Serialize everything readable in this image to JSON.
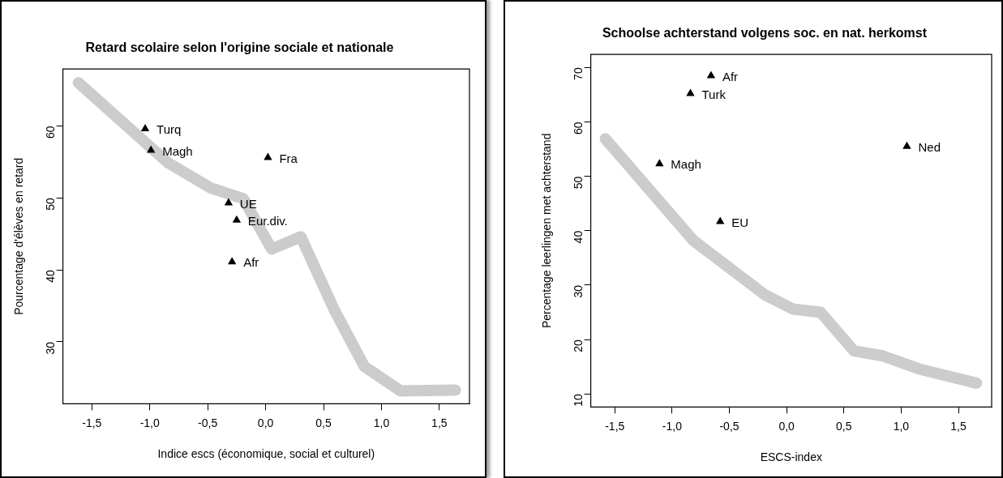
{
  "chart_data": [
    {
      "type": "line",
      "title": "Retard scolaire selon l'origine sociale et nationale",
      "xlabel": "Indice escs (économique, social et culturel)",
      "ylabel": "Pourcentage d'élèves en retard",
      "xlim": [
        -1.75,
        1.76
      ],
      "ylim": [
        21.4,
        67.9
      ],
      "xticks": [
        {
          "value": -1.5,
          "label": "-1,5"
        },
        {
          "value": -1.0,
          "label": "-1,0"
        },
        {
          "value": -0.5,
          "label": "-0,5"
        },
        {
          "value": 0,
          "label": "0,0"
        },
        {
          "value": 0.5,
          "label": "0,5"
        },
        {
          "value": 1.0,
          "label": "1,0"
        },
        {
          "value": 1.5,
          "label": "1,5"
        }
      ],
      "yticks": [
        30,
        40,
        50,
        60
      ],
      "grid": false,
      "legend": false,
      "series": [
        {
          "color": "#cccccc",
          "marker": "none",
          "line_style": "solid",
          "x": [
            -1.617,
            -0.844,
            -0.477,
            -0.193,
            0.052,
            0.304,
            0.594,
            0.852,
            1.164,
            1.638
          ],
          "values": [
            66.0,
            54.9,
            51.4,
            49.9,
            42.9,
            44.6,
            34.4,
            26.6,
            23.2,
            23.3
          ]
        },
        {
          "type": "scatter",
          "name": "Turq",
          "color": "#000000",
          "marker": "triangle",
          "x": [
            -1.04
          ],
          "values": [
            59.6
          ]
        },
        {
          "type": "scatter",
          "name": "Magh",
          "color": "#000000",
          "marker": "triangle",
          "x": [
            -0.99
          ],
          "values": [
            56.6
          ]
        },
        {
          "type": "scatter",
          "name": "Fra",
          "color": "#000000",
          "marker": "triangle",
          "x": [
            0.02
          ],
          "values": [
            55.6
          ]
        },
        {
          "type": "scatter",
          "name": "UE",
          "color": "#000000",
          "marker": "triangle",
          "x": [
            -0.32
          ],
          "values": [
            49.3
          ]
        },
        {
          "type": "scatter",
          "name": "Eur.div.",
          "color": "#000000",
          "marker": "triangle",
          "x": [
            -0.25
          ],
          "values": [
            46.9
          ]
        },
        {
          "type": "scatter",
          "name": "Afr",
          "color": "#000000",
          "marker": "triangle",
          "x": [
            -0.29
          ],
          "values": [
            41.1
          ]
        }
      ]
    },
    {
      "type": "line",
      "title": "Schoolse achterstand volgens soc. en nat. herkomst",
      "xlabel": "ESCS-index",
      "ylabel": "Percentage leerlingen met achterstand",
      "xlim": [
        -1.71,
        1.79
      ],
      "ylim": [
        7.6,
        72.4
      ],
      "xticks": [
        {
          "value": -1.5,
          "label": "-1,5"
        },
        {
          "value": -1.0,
          "label": "-1,0"
        },
        {
          "value": -0.5,
          "label": "-0,5"
        },
        {
          "value": 0,
          "label": "0,0"
        },
        {
          "value": 0.5,
          "label": "0,5"
        },
        {
          "value": 1.0,
          "label": "1,0"
        },
        {
          "value": 1.5,
          "label": "1,5"
        }
      ],
      "yticks": [
        10,
        20,
        30,
        40,
        50,
        60,
        70
      ],
      "grid": false,
      "legend": false,
      "series": [
        {
          "color": "#cccccc",
          "marker": "none",
          "line_style": "solid",
          "x": [
            -1.583,
            -0.814,
            -0.189,
            0.056,
            0.297,
            0.589,
            0.839,
            1.172,
            1.658
          ],
          "values": [
            56.9,
            38.2,
            28.2,
            25.6,
            25.0,
            17.9,
            17.0,
            14.5,
            12.0
          ]
        },
        {
          "type": "scatter",
          "name": "Afr",
          "color": "#000000",
          "marker": "triangle",
          "x": [
            -0.66
          ],
          "values": [
            68.5
          ]
        },
        {
          "type": "scatter",
          "name": "Turk",
          "color": "#000000",
          "marker": "triangle",
          "x": [
            -0.84
          ],
          "values": [
            65.2
          ]
        },
        {
          "type": "scatter",
          "name": "Magh",
          "color": "#000000",
          "marker": "triangle",
          "x": [
            -1.11
          ],
          "values": [
            52.3
          ]
        },
        {
          "type": "scatter",
          "name": "EU",
          "color": "#000000",
          "marker": "triangle",
          "x": [
            -0.58
          ],
          "values": [
            41.7
          ]
        },
        {
          "type": "scatter",
          "name": "Ned",
          "color": "#000000",
          "marker": "triangle",
          "x": [
            1.05
          ],
          "values": [
            55.5
          ]
        }
      ]
    }
  ]
}
